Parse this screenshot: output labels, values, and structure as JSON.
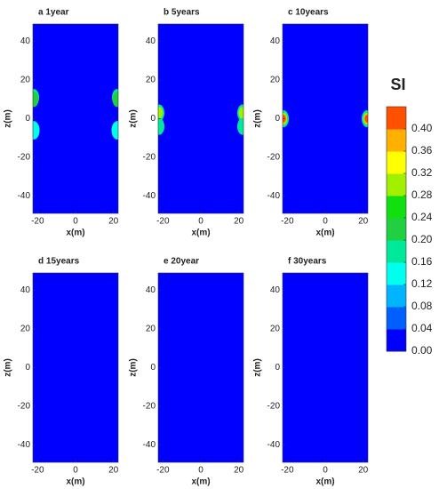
{
  "chart_data": [
    {
      "type": "contour",
      "title": "a 1year",
      "xlabel": "x(m)",
      "ylabel": "z(m)",
      "xlim": [
        -22.5,
        22.5
      ],
      "ylim": [
        -49,
        49
      ],
      "xticks": [
        -20,
        0,
        20
      ],
      "yticks": [
        -40,
        -20,
        0,
        20,
        40
      ],
      "hotspots": [
        {
          "x": -22,
          "z": 11,
          "si": 0.16
        },
        {
          "x": -22,
          "z": 10,
          "si": 0.2
        },
        {
          "x": -22,
          "z": -6,
          "si": 0.12
        },
        {
          "x": 22,
          "z": 11,
          "si": 0.16
        },
        {
          "x": 22,
          "z": 10,
          "si": 0.2
        },
        {
          "x": 22,
          "z": -6,
          "si": 0.12
        }
      ]
    },
    {
      "type": "contour",
      "title": "b 5years",
      "xlabel": "x(m)",
      "ylabel": "z(m)",
      "xlim": [
        -22.5,
        22.5
      ],
      "ylim": [
        -49,
        49
      ],
      "xticks": [
        -20,
        0,
        20
      ],
      "yticks": [
        -40,
        -20,
        0,
        20,
        40
      ],
      "hotspots": [
        {
          "x": -22,
          "z": 3,
          "si": 0.16
        },
        {
          "x": -22,
          "z": 3,
          "si": 0.28
        },
        {
          "x": -22,
          "z": -4,
          "si": 0.16
        },
        {
          "x": 22,
          "z": 3,
          "si": 0.16
        },
        {
          "x": 22,
          "z": 3,
          "si": 0.28
        },
        {
          "x": 22,
          "z": -4,
          "si": 0.16
        }
      ]
    },
    {
      "type": "contour",
      "title": "c 10years",
      "xlabel": "x(m)",
      "ylabel": "z(m)",
      "xlim": [
        -22.5,
        22.5
      ],
      "ylim": [
        -49,
        49
      ],
      "xticks": [
        -20,
        0,
        20
      ],
      "yticks": [
        -40,
        -20,
        0,
        20,
        40
      ],
      "hotspots": [
        {
          "x": -22,
          "z": 0,
          "si": 0.16
        },
        {
          "x": -22,
          "z": 0,
          "si": 0.28
        },
        {
          "x": -22,
          "z": 0,
          "si": 0.36
        },
        {
          "x": -22,
          "z": 0,
          "si": 0.4
        },
        {
          "x": 22,
          "z": 0,
          "si": 0.16
        },
        {
          "x": 22,
          "z": 0,
          "si": 0.28
        },
        {
          "x": 22,
          "z": 0,
          "si": 0.36
        },
        {
          "x": 22,
          "z": 0,
          "si": 0.4
        }
      ]
    },
    {
      "type": "contour",
      "title": "d 15years",
      "xlabel": "x(m)",
      "ylabel": "z(m)",
      "xlim": [
        -22.5,
        22.5
      ],
      "ylim": [
        -49,
        49
      ],
      "xticks": [
        -20,
        0,
        20
      ],
      "yticks": [
        -40,
        -20,
        0,
        20,
        40
      ],
      "hotspots": []
    },
    {
      "type": "contour",
      "title": "e 20year",
      "xlabel": "x(m)",
      "ylabel": "z(m)",
      "xlim": [
        -22.5,
        22.5
      ],
      "ylim": [
        -49,
        49
      ],
      "xticks": [
        -20,
        0,
        20
      ],
      "yticks": [
        -40,
        -20,
        0,
        20,
        40
      ],
      "hotspots": []
    },
    {
      "type": "contour",
      "title": "f 30years",
      "xlabel": "x(m)",
      "ylabel": "z(m)",
      "xlim": [
        -22.5,
        22.5
      ],
      "ylim": [
        -49,
        49
      ],
      "xticks": [
        -20,
        0,
        20
      ],
      "yticks": [
        -40,
        -20,
        0,
        20,
        40
      ],
      "hotspots": []
    },
    {
      "type": "colorbar",
      "title": "SI",
      "ylim": [
        0,
        0.44
      ],
      "yticks": [
        {
          "value": 0,
          "label": "0.00"
        },
        {
          "value": 0.04,
          "label": "0.04"
        },
        {
          "value": 0.08,
          "label": "0.08"
        },
        {
          "value": 0.12,
          "label": "0.12"
        },
        {
          "value": 0.16,
          "label": "0.16"
        },
        {
          "value": 0.2,
          "label": "0.20"
        },
        {
          "value": 0.24,
          "label": "0.24"
        },
        {
          "value": 0.28,
          "label": "0.28"
        },
        {
          "value": 0.32,
          "label": "0.32"
        },
        {
          "value": 0.36,
          "label": "0.36"
        },
        {
          "value": 0.4,
          "label": "0.40"
        }
      ],
      "colors": [
        "#0000ff",
        "#0060ff",
        "#00b4ff",
        "#00ffee",
        "#00e89a",
        "#20d040",
        "#10e010",
        "#a0f000",
        "#ffff00",
        "#ffb000",
        "#ff5000",
        "#e80000"
      ]
    }
  ]
}
